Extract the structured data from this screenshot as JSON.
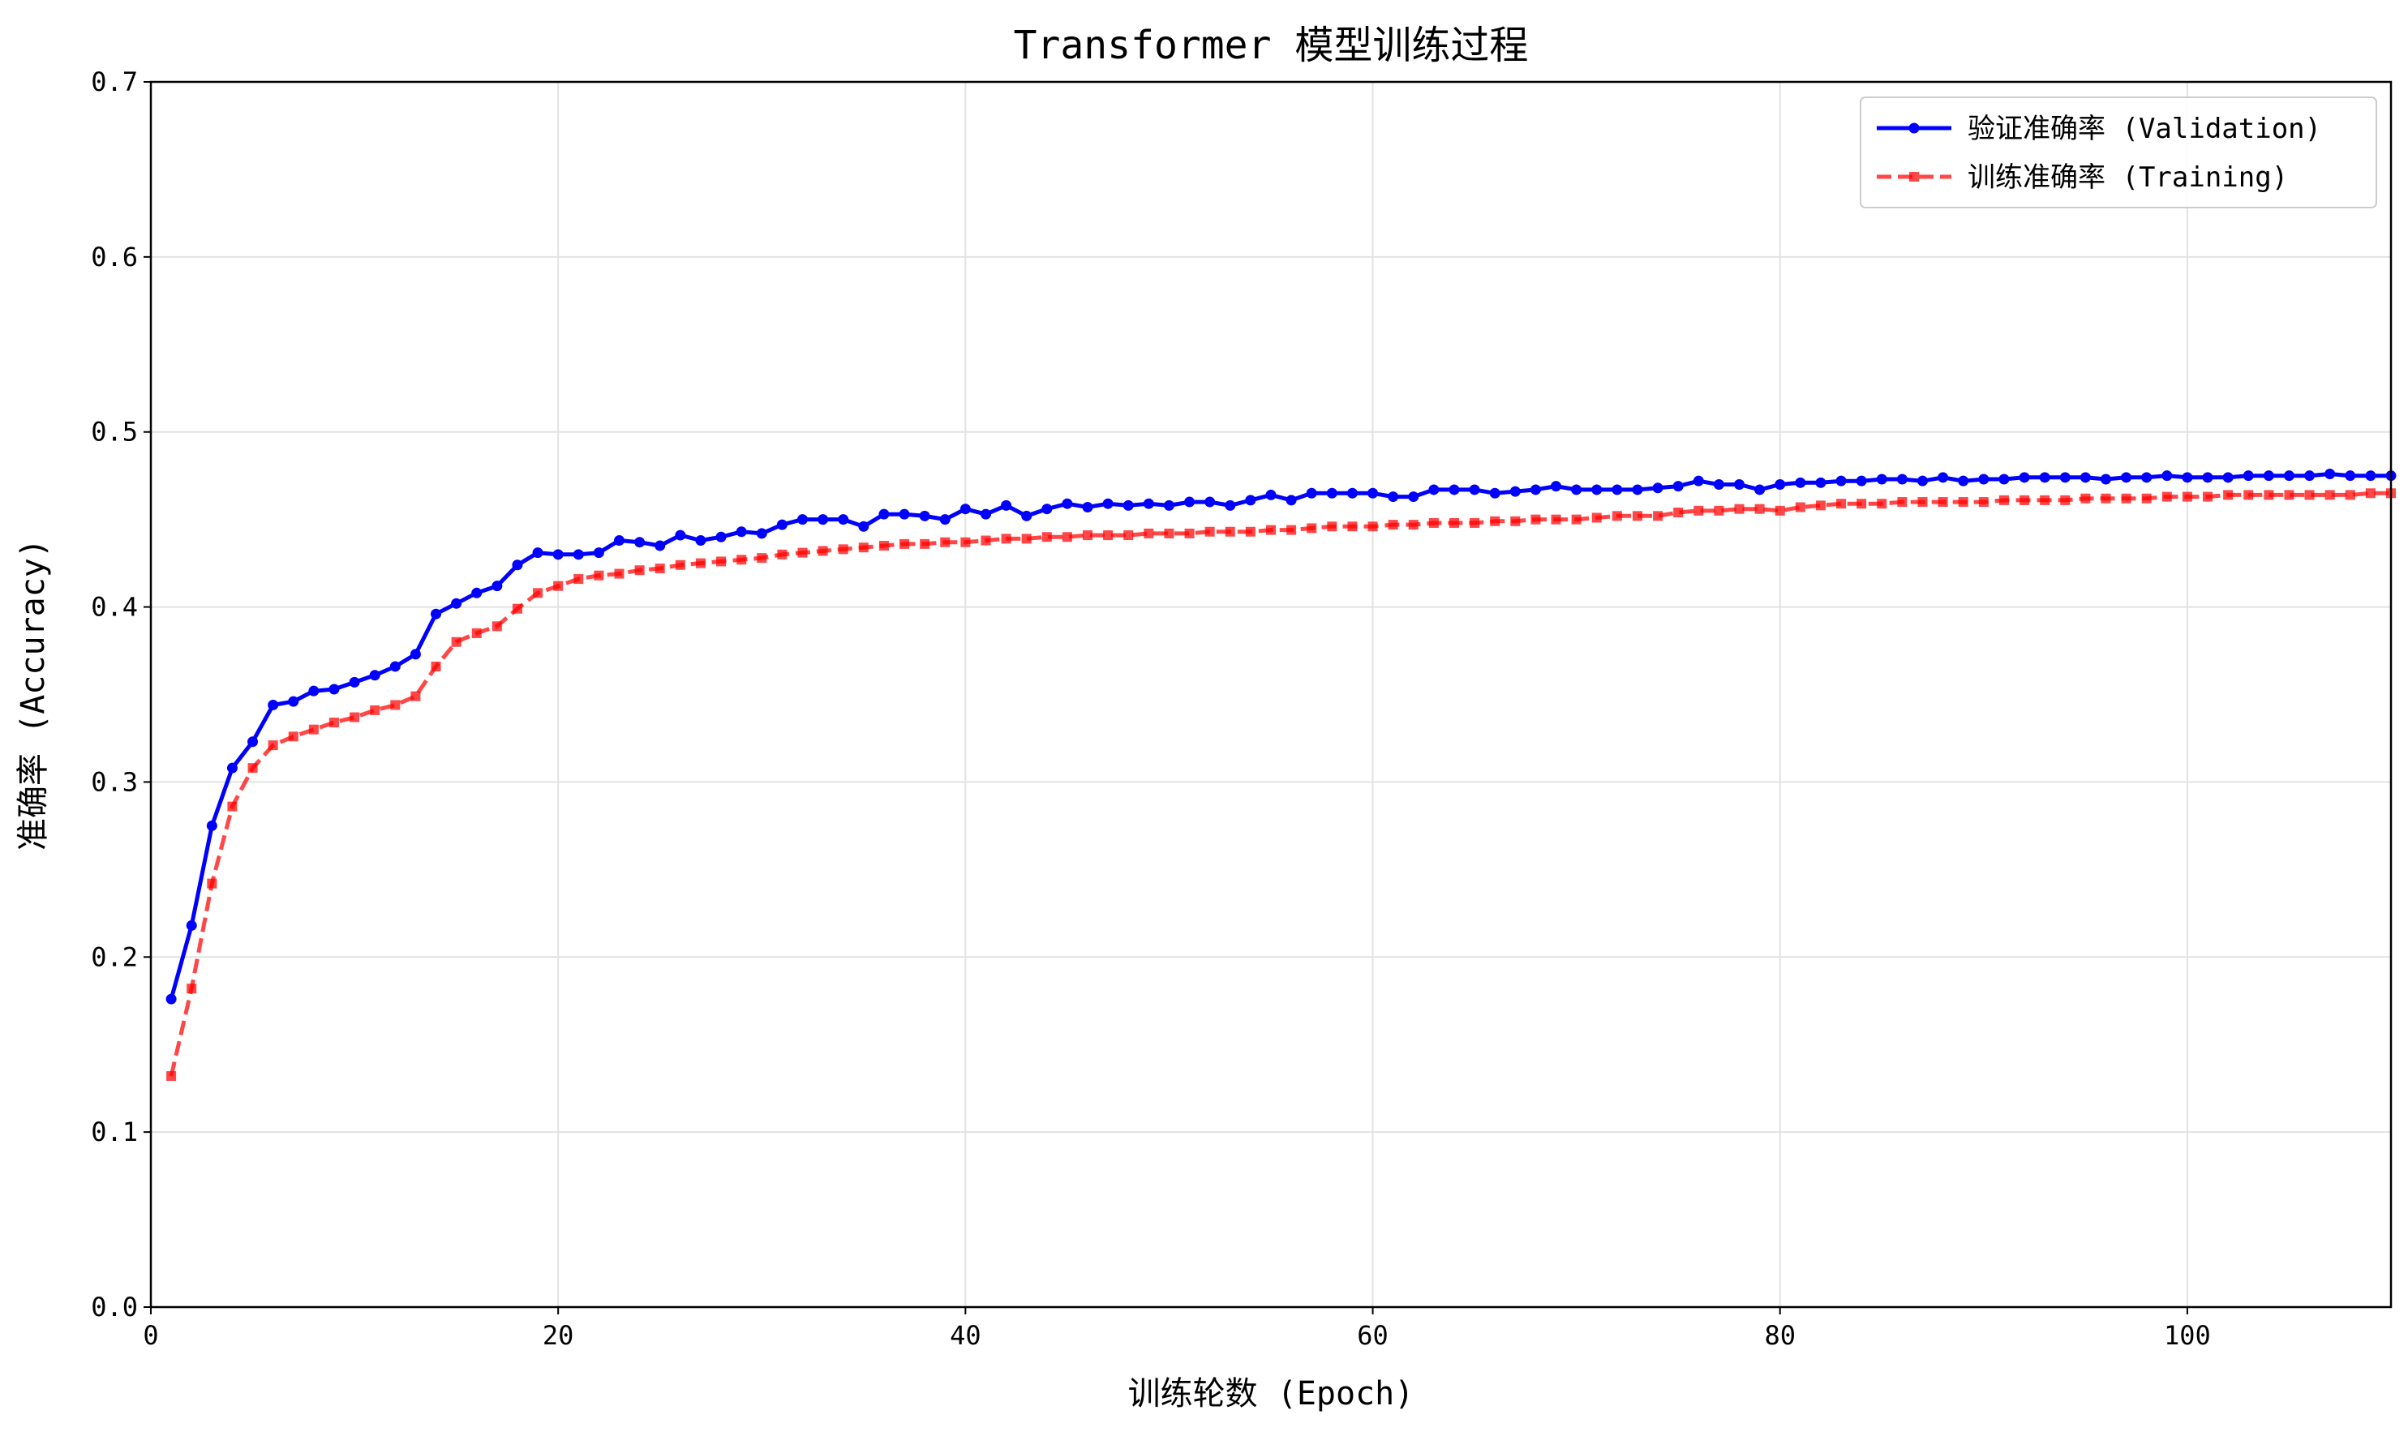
{
  "chart_data": {
    "type": "line",
    "title": "Transformer 模型训练过程",
    "xlabel": "训练轮数 (Epoch)",
    "ylabel": "准确率 (Accuracy)",
    "xlim": [
      0,
      110
    ],
    "ylim": [
      0.0,
      0.7
    ],
    "xticks": [
      0,
      20,
      40,
      60,
      80,
      100
    ],
    "xtick_labels": [
      "0",
      "20",
      "40",
      "60",
      "80",
      "100"
    ],
    "yticks": [
      0.0,
      0.1,
      0.2,
      0.3,
      0.4,
      0.5,
      0.6,
      0.7
    ],
    "ytick_labels": [
      "0.0",
      "0.1",
      "0.2",
      "0.3",
      "0.4",
      "0.5",
      "0.6",
      "0.7"
    ],
    "grid": true,
    "legend_position": "top-right",
    "x": [
      1,
      2,
      3,
      4,
      5,
      6,
      7,
      8,
      9,
      10,
      11,
      12,
      13,
      14,
      15,
      16,
      17,
      18,
      19,
      20,
      21,
      22,
      23,
      24,
      25,
      26,
      27,
      28,
      29,
      30,
      31,
      32,
      33,
      34,
      35,
      36,
      37,
      38,
      39,
      40,
      41,
      42,
      43,
      44,
      45,
      46,
      47,
      48,
      49,
      50,
      51,
      52,
      53,
      54,
      55,
      56,
      57,
      58,
      59,
      60,
      61,
      62,
      63,
      64,
      65,
      66,
      67,
      68,
      69,
      70,
      71,
      72,
      73,
      74,
      75,
      76,
      77,
      78,
      79,
      80,
      81,
      82,
      83,
      84,
      85,
      86,
      87,
      88,
      89,
      90,
      91,
      92,
      93,
      94,
      95,
      96,
      97,
      98,
      99,
      100,
      101,
      102,
      103,
      104,
      105,
      106,
      107,
      108,
      109,
      110
    ],
    "series": [
      {
        "name": "验证准确率 (Validation)",
        "color": "#0000ff",
        "style": "solid",
        "marker": "circle",
        "values": [
          0.176,
          0.218,
          0.275,
          0.308,
          0.323,
          0.344,
          0.346,
          0.352,
          0.353,
          0.357,
          0.361,
          0.366,
          0.373,
          0.396,
          0.402,
          0.408,
          0.412,
          0.424,
          0.431,
          0.43,
          0.43,
          0.431,
          0.438,
          0.437,
          0.435,
          0.441,
          0.438,
          0.44,
          0.443,
          0.442,
          0.447,
          0.45,
          0.45,
          0.45,
          0.446,
          0.453,
          0.453,
          0.452,
          0.45,
          0.456,
          0.453,
          0.458,
          0.452,
          0.456,
          0.459,
          0.457,
          0.459,
          0.458,
          0.459,
          0.458,
          0.46,
          0.46,
          0.458,
          0.461,
          0.464,
          0.461,
          0.465,
          0.465,
          0.465,
          0.465,
          0.463,
          0.463,
          0.467,
          0.467,
          0.467,
          0.465,
          0.466,
          0.467,
          0.469,
          0.467,
          0.467,
          0.467,
          0.467,
          0.468,
          0.469,
          0.472,
          0.47,
          0.47,
          0.467,
          0.47,
          0.471,
          0.471,
          0.472,
          0.472,
          0.473,
          0.473,
          0.472,
          0.474,
          0.472,
          0.473,
          0.473,
          0.474,
          0.474,
          0.474,
          0.474,
          0.473,
          0.474,
          0.474,
          0.475,
          0.474,
          0.474,
          0.474,
          0.475,
          0.475,
          0.475,
          0.475,
          0.476,
          0.475,
          0.475,
          0.475
        ]
      },
      {
        "name": "训练准确率 (Training)",
        "color": "#ff0000",
        "style": "dashed",
        "marker": "square",
        "values": [
          0.132,
          0.182,
          0.242,
          0.286,
          0.308,
          0.321,
          0.326,
          0.33,
          0.334,
          0.337,
          0.341,
          0.344,
          0.349,
          0.366,
          0.38,
          0.385,
          0.389,
          0.399,
          0.408,
          0.412,
          0.416,
          0.418,
          0.419,
          0.421,
          0.422,
          0.424,
          0.425,
          0.426,
          0.427,
          0.428,
          0.43,
          0.431,
          0.432,
          0.433,
          0.434,
          0.435,
          0.436,
          0.436,
          0.437,
          0.437,
          0.438,
          0.439,
          0.439,
          0.44,
          0.44,
          0.441,
          0.441,
          0.441,
          0.442,
          0.442,
          0.442,
          0.443,
          0.443,
          0.443,
          0.444,
          0.444,
          0.445,
          0.446,
          0.446,
          0.446,
          0.447,
          0.447,
          0.448,
          0.448,
          0.448,
          0.449,
          0.449,
          0.45,
          0.45,
          0.45,
          0.451,
          0.452,
          0.452,
          0.452,
          0.454,
          0.455,
          0.455,
          0.456,
          0.456,
          0.455,
          0.457,
          0.458,
          0.459,
          0.459,
          0.459,
          0.46,
          0.46,
          0.46,
          0.46,
          0.46,
          0.461,
          0.461,
          0.461,
          0.461,
          0.462,
          0.462,
          0.462,
          0.462,
          0.463,
          0.463,
          0.463,
          0.464,
          0.464,
          0.464,
          0.464,
          0.464,
          0.464,
          0.464,
          0.465,
          0.465
        ]
      }
    ]
  }
}
